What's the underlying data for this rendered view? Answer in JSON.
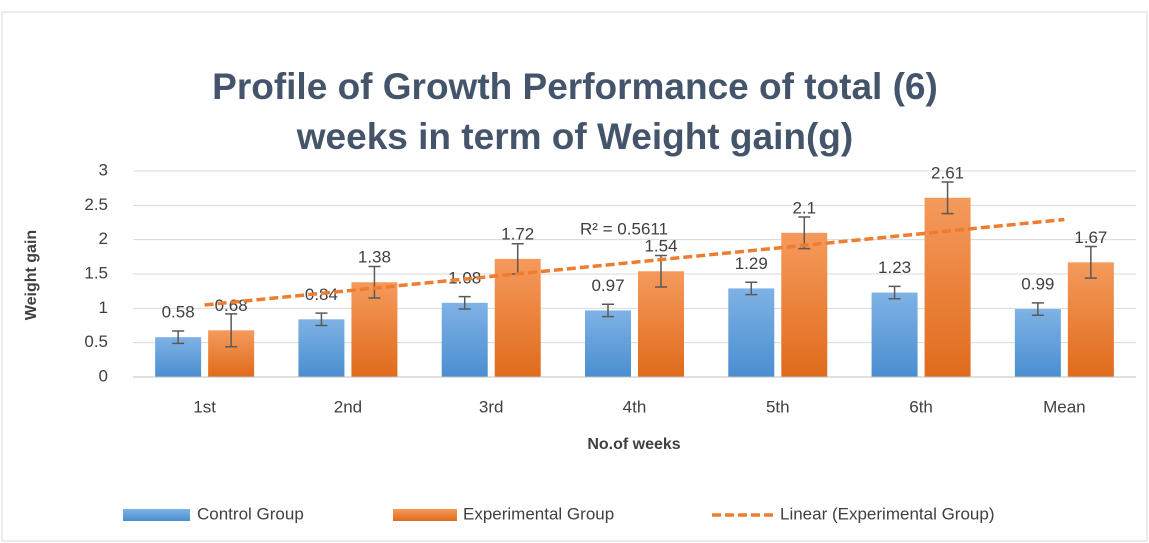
{
  "chart_data": {
    "type": "bar",
    "title": "Profile of Growth Performance of total (6) weeks in term of Weight gain(g)",
    "x_label": "No.of weeks",
    "y_label": "Weight gain",
    "categories": [
      "1st",
      "2nd",
      "3rd",
      "4th",
      "5th",
      "6th",
      "Mean"
    ],
    "series": [
      {
        "name": "Control Group",
        "color": "#5b9bd5",
        "values": [
          0.58,
          0.84,
          1.08,
          0.97,
          1.29,
          1.23,
          0.99
        ],
        "errors": [
          0.09,
          0.09,
          0.09,
          0.09,
          0.09,
          0.09,
          0.09
        ]
      },
      {
        "name": "Experimental Group",
        "color": "#ed7d31",
        "values": [
          0.68,
          1.38,
          1.72,
          1.54,
          2.1,
          2.61,
          1.67
        ],
        "errors": [
          0.24,
          0.23,
          0.22,
          0.23,
          0.23,
          0.23,
          0.23
        ]
      }
    ],
    "trendline": {
      "name": "Linear (Experimental Group)",
      "series": 1,
      "color": "#ed7d31",
      "annotation": "R² = 0.5611"
    },
    "ylim": [
      0,
      3
    ],
    "yticks": [
      0,
      0.5,
      1,
      1.5,
      2,
      2.5,
      3
    ],
    "grid": true,
    "legend": "bottom"
  }
}
